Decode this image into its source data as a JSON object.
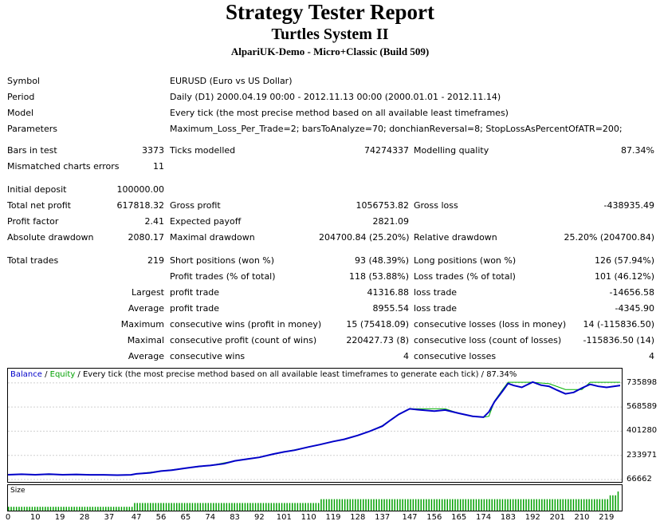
{
  "report": {
    "title": "Strategy Tester Report",
    "subtitle": "Turtles System II",
    "server": "AlpariUK-Demo - Micro+Classic (Build 509)"
  },
  "info": {
    "symbol_label": "Symbol",
    "symbol": "EURUSD (Euro vs US Dollar)",
    "period_label": "Period",
    "period": "Daily (D1) 2000.04.19 00:00 - 2012.11.13 00:00 (2000.01.01 - 2012.11.14)",
    "model_label": "Model",
    "model": "Every tick (the most precise method based on all available least timeframes)",
    "params_label": "Parameters",
    "params": "Maximum_Loss_Per_Trade=2; barsToAnalyze=70; donchianReversal=8; StopLossAsPercentOfATR=200;"
  },
  "stats": {
    "bars_label": "Bars in test",
    "bars": "3373",
    "ticks_label": "Ticks modelled",
    "ticks": "74274337",
    "quality_label": "Modelling quality",
    "quality": "87.34%",
    "mismatch_label": "Mismatched charts errors",
    "mismatch": "11",
    "deposit_label": "Initial deposit",
    "deposit": "100000.00",
    "net_label": "Total net profit",
    "net": "617818.32",
    "gprofit_label": "Gross profit",
    "gprofit": "1056753.82",
    "gloss_label": "Gross loss",
    "gloss": "-438935.49",
    "pf_label": "Profit factor",
    "pf": "2.41",
    "payoff_label": "Expected payoff",
    "payoff": "2821.09",
    "absdd_label": "Absolute drawdown",
    "absdd": "2080.17",
    "maxdd_label": "Maximal drawdown",
    "maxdd": "204700.84 (25.20%)",
    "reldd_label": "Relative drawdown",
    "reldd": "25.20% (204700.84)",
    "trades_label": "Total trades",
    "trades": "219",
    "short_label": "Short positions (won %)",
    "short": "93 (48.39%)",
    "long_label": "Long positions (won %)",
    "long": "126 (57.94%)",
    "ptrades_label": "Profit trades (% of total)",
    "ptrades": "118 (53.88%)",
    "ltrades_label": "Loss trades (% of total)",
    "ltrades": "101 (46.12%)",
    "largest_label": "Largest",
    "largest_pt_label": "profit trade",
    "largest_pt": "41316.88",
    "largest_lt_label": "loss trade",
    "largest_lt": "-14656.58",
    "average_label": "Average",
    "average_pt_label": "profit trade",
    "average_pt": "8955.54",
    "average_lt_label": "loss trade",
    "average_lt": "-4345.90",
    "maximum_label": "Maximum",
    "max_cw_label": "consecutive wins (profit in money)",
    "max_cw": "15 (75418.09)",
    "max_cl_label": "consecutive losses (loss in money)",
    "max_cl": "14 (-115836.50)",
    "maximal_label": "Maximal",
    "mxl_cp_label": "consecutive profit (count of wins)",
    "mxl_cp": "220427.73 (8)",
    "mxl_cl_label": "consecutive loss (count of losses)",
    "mxl_cl": "-115836.50 (14)",
    "avg2_label": "Average",
    "avg_cw_label": "consecutive wins",
    "avg_cw": "4",
    "avg_cl_label": "consecutive losses",
    "avg_cl": "4"
  },
  "chart_data": {
    "type": "line",
    "legend": {
      "balance": "Balance",
      "sep1": " / ",
      "equity": "Equity",
      "rest": " / Every tick (the most precise method based on all available least timeframes to generate each tick) / 87.34%"
    },
    "size_label": "Size",
    "y_ticks": [
      735898,
      568589,
      401280,
      233971,
      66662
    ],
    "y_tick_labels": [
      "735898",
      "568589",
      "401280",
      "233971",
      "66662"
    ],
    "ylim": [
      66662,
      818000
    ],
    "xlim": [
      0,
      224
    ],
    "x_ticks": [
      0,
      10,
      19,
      28,
      37,
      47,
      56,
      65,
      74,
      83,
      92,
      101,
      110,
      119,
      128,
      137,
      147,
      156,
      165,
      174,
      183,
      192,
      201,
      210,
      219
    ],
    "x_tick_labels": [
      "0",
      "10",
      "19",
      "28",
      "37",
      "47",
      "56",
      "65",
      "74",
      "83",
      "92",
      "101",
      "110",
      "119",
      "128",
      "137",
      "147",
      "156",
      "165",
      "174",
      "183",
      "192",
      "201",
      "210",
      "219"
    ],
    "colors": {
      "balance": "#0000c8",
      "equity": "#00b000",
      "size": "#00a000"
    },
    "series": [
      {
        "name": "Balance",
        "x": [
          0,
          5,
          10,
          15,
          20,
          25,
          30,
          35,
          40,
          45,
          47,
          52,
          56,
          60,
          65,
          70,
          74,
          79,
          83,
          88,
          92,
          97,
          101,
          105,
          110,
          114,
          119,
          123,
          128,
          132,
          137,
          140,
          143,
          147,
          150,
          153,
          156,
          160,
          165,
          170,
          174,
          176,
          178,
          181,
          183,
          185,
          188,
          192,
          195,
          198,
          201,
          204,
          207,
          210,
          213,
          216,
          219,
          224
        ],
        "values": [
          100000,
          103000,
          100000,
          104000,
          100000,
          102000,
          99000,
          99000,
          97000,
          99000,
          106000,
          113000,
          125000,
          132000,
          145000,
          158000,
          164000,
          176000,
          196000,
          210000,
          220000,
          243000,
          258000,
          270000,
          292000,
          308000,
          330000,
          345000,
          372000,
          398000,
          436000,
          478000,
          518000,
          556000,
          550000,
          545000,
          540000,
          548000,
          525000,
          505000,
          498000,
          535000,
          605000,
          680000,
          732000,
          718000,
          705000,
          742000,
          720000,
          712000,
          685000,
          660000,
          670000,
          700000,
          726000,
          712000,
          705000,
          718000
        ]
      },
      {
        "name": "Equity",
        "x": [
          0,
          10,
          20,
          30,
          40,
          45,
          47,
          56,
          65,
          74,
          83,
          92,
          101,
          110,
          119,
          123,
          128,
          132,
          137,
          140,
          143,
          147,
          153,
          160,
          165,
          170,
          174,
          176,
          178,
          181,
          183,
          188,
          192,
          198,
          204,
          210,
          213,
          219,
          224
        ],
        "values": [
          100000,
          100000,
          100000,
          99000,
          97000,
          99000,
          106000,
          125000,
          145000,
          164000,
          196000,
          220000,
          258000,
          292000,
          330000,
          345000,
          372000,
          398000,
          440000,
          480000,
          520000,
          556000,
          556000,
          556000,
          525000,
          505000,
          498000,
          505000,
          610000,
          690000,
          740000,
          740000,
          740000,
          730000,
          690000,
          690000,
          740000,
          740000,
          740000
        ]
      }
    ],
    "size_values": [
      1,
      1,
      1,
      1,
      1,
      1,
      1,
      1,
      1,
      1,
      1,
      1,
      1,
      1,
      1,
      1,
      1,
      1,
      1,
      1,
      1,
      1,
      1,
      1,
      1,
      1,
      1,
      1,
      1,
      1,
      1,
      1,
      1,
      1,
      1,
      1,
      1,
      1,
      1,
      1,
      1,
      1,
      1,
      1,
      1,
      1,
      1,
      1,
      2,
      2,
      2,
      2,
      2,
      2,
      2,
      2,
      2,
      2,
      2,
      2,
      2,
      2,
      2,
      2,
      2,
      2,
      2,
      2,
      2,
      2,
      2,
      2,
      2,
      2,
      2,
      2,
      2,
      2,
      2,
      2,
      2,
      2,
      2,
      2,
      2,
      2,
      2,
      2,
      2,
      2,
      2,
      2,
      2,
      2,
      2,
      2,
      2,
      2,
      2,
      2,
      2,
      2,
      2,
      2,
      2,
      2,
      2,
      2,
      2,
      2,
      2,
      2,
      2,
      2,
      2,
      2,
      2,
      2,
      2,
      3,
      3,
      3,
      3,
      3,
      3,
      3,
      3,
      3,
      3,
      3,
      3,
      3,
      3,
      3,
      3,
      3,
      3,
      3,
      3,
      3,
      3,
      3,
      3,
      3,
      3,
      3,
      3,
      3,
      3,
      3,
      3,
      3,
      3,
      3,
      3,
      3,
      3,
      3,
      3,
      3,
      3,
      3,
      3,
      3,
      3,
      3,
      3,
      3,
      3,
      3,
      3,
      3,
      3,
      3,
      3,
      3,
      3,
      3,
      3,
      3,
      3,
      3,
      3,
      3,
      3,
      3,
      3,
      3,
      3,
      3,
      3,
      3,
      3,
      3,
      3,
      3,
      3,
      3,
      3,
      3,
      3,
      3,
      3,
      3,
      3,
      3,
      3,
      3,
      3,
      3,
      3,
      3,
      3,
      3,
      3,
      3,
      3,
      3,
      3,
      3,
      3,
      3,
      3,
      3,
      3,
      3,
      3,
      3,
      3,
      4,
      4,
      4,
      5
    ]
  }
}
